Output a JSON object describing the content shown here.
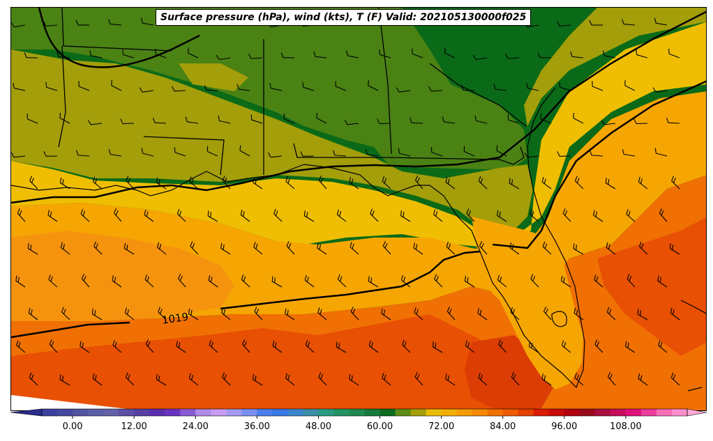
{
  "title": "Surface pressure (hPa), wind (kts), T (F) Valid: 202105130000f025",
  "contour_label": "1019",
  "colorbar": {
    "min": -6,
    "max": 120,
    "step": 3,
    "tick_values": [
      0,
      12,
      24,
      36,
      48,
      60,
      72,
      84,
      96,
      108
    ],
    "tick_labels": [
      "0.00",
      "12.00",
      "24.00",
      "36.00",
      "48.00",
      "60.00",
      "72.00",
      "84.00",
      "96.00",
      "108.00"
    ],
    "colors": [
      "#3b3f9e",
      "#45489e",
      "#50539f",
      "#5a5ea4",
      "#6361a8",
      "#5a4ea6",
      "#5640a4",
      "#5a2cae",
      "#6a32c0",
      "#8a5ad6",
      "#b08ae6",
      "#c89cf2",
      "#a49af0",
      "#7890f2",
      "#4b7ef0",
      "#3a78e6",
      "#3a86cc",
      "#3a8ea6",
      "#2a9a80",
      "#239264",
      "#1e8a50",
      "#157a3c",
      "#0a6a1e",
      "#5e8c14",
      "#a39e0a",
      "#e8bc06",
      "#f3ae06",
      "#f59c04",
      "#f68a02",
      "#f27000",
      "#ee5a02",
      "#e44000",
      "#da1a02",
      "#c80a08",
      "#b2000e",
      "#9a0a1a",
      "#a81040",
      "#c80c5a",
      "#e0107a",
      "#ee3c9a",
      "#f66eb8",
      "#fb8ecc"
    ],
    "under_color": "#2a2f8e",
    "over_color": "#fba8d8"
  },
  "map_colors": {
    "green_dark": "#0b6a18",
    "green": "#4a8214",
    "olive": "#a39e0a",
    "yellow": "#efbe03",
    "orange_light": "#f6a602",
    "orange": "#f5930e",
    "orange_red": "#f07004",
    "red_orange": "#e85003",
    "red": "#dc3d05",
    "background": "#ffffff"
  }
}
